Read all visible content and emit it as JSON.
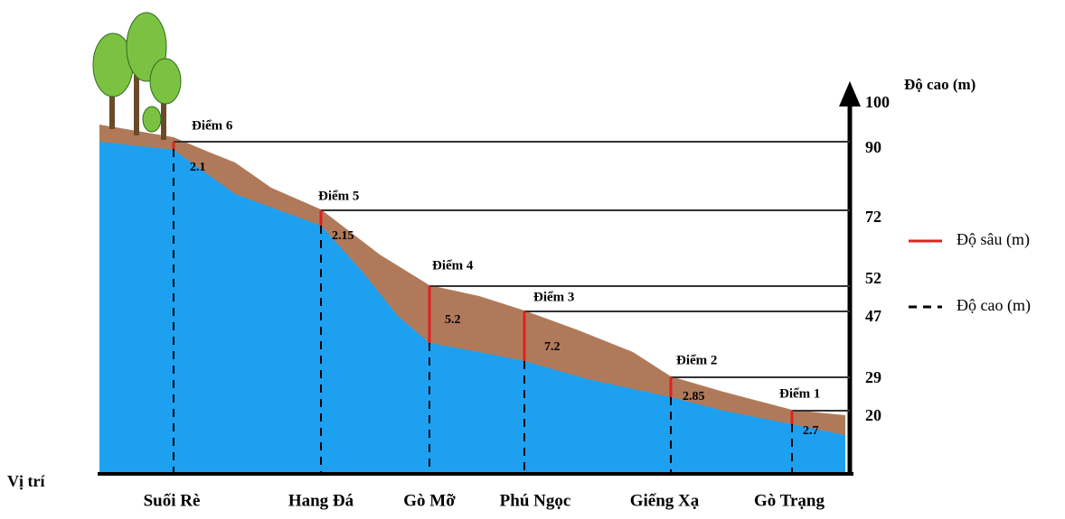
{
  "axis": {
    "title": "Độ cao (m)",
    "ticks": [
      "100",
      "90",
      "72",
      "52",
      "47",
      "29",
      "20"
    ]
  },
  "x_title": "Vị trí",
  "points": [
    {
      "label": "Điểm 6",
      "depth": "2.1",
      "location": "Suối Rè"
    },
    {
      "label": "Điểm 5",
      "depth": "2.15",
      "location": "Hang Đá"
    },
    {
      "label": "Điểm 4",
      "depth": "5.2",
      "location": "Gò Mỡ"
    },
    {
      "label": "Điểm 3",
      "depth": "7.2",
      "location": "Phú Ngọc"
    },
    {
      "label": "Điểm 2",
      "depth": "2.85",
      "location": "Giếng Xạ"
    },
    {
      "label": "Điểm 1",
      "depth": "2.7",
      "location": "Gò Trạng"
    }
  ],
  "legend": [
    "Độ sâu (m)",
    "Độ cao (m)"
  ]
}
